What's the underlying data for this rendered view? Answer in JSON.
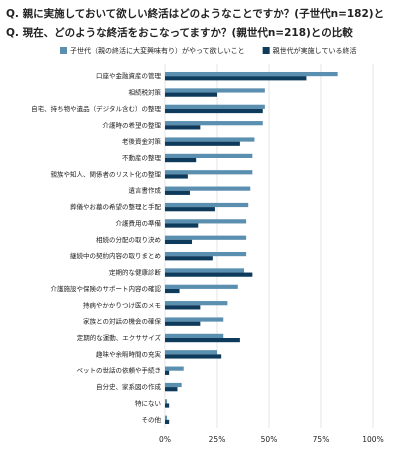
{
  "chart_data": {
    "type": "hbar",
    "title": [
      "Q. 親に実施しておいて欲しい終活はどのようなことですか？(子世代n=182)と",
      "Q. 現在、どのような終活をおこなってますか？(親世代n=218)との比較"
    ],
    "categories": [
      "口座や金融資産の管理",
      "相続税対策",
      "自宅、持ち物や遺品（デジタル含む）の整理",
      "介護時の希望の整理",
      "老後資金対策",
      "不動産の整理",
      "親族や知人、関係者のリスト化の整理",
      "遺言書作成",
      "葬儀やお墓の希望の整理と手配",
      "介護費用の準備",
      "相続の分配の取り決め",
      "継続中の契約内容の取りまとめ",
      "定期的な健康診断",
      "介護施設や保険のサポート内容の確認",
      "持病やかかりつけ医のメモ",
      "家族との対話の機会の確保",
      "定期的な運動、エクササイズ",
      "趣味や余暇時間の充実",
      "ペットの世話の依頼や手続き",
      "自分史、家系図の作成",
      "特にない",
      "その他"
    ],
    "category_colors": [
      "#222",
      "#222",
      "#222",
      "#d9761e",
      "#222",
      "#222",
      "#d9761e",
      "#d9761e",
      "#222",
      "#222",
      "#222",
      "#222",
      "#222",
      "#222",
      "#222",
      "#222",
      "#222",
      "#222",
      "#222",
      "#222",
      "#222",
      "#222"
    ],
    "series": [
      {
        "name": "子世代（親の終活に大変興味有り）がやって欲しいこと",
        "color": "#5a8fb0",
        "values": [
          83,
          48,
          48,
          47,
          43,
          42,
          42,
          41,
          40,
          39,
          39,
          39,
          38,
          35,
          30,
          28,
          28,
          25,
          9,
          8,
          1,
          1
        ]
      },
      {
        "name": "親世代が実施している終活",
        "color": "#0e3a5c",
        "values": [
          68,
          25,
          47,
          17,
          36,
          15,
          11,
          12,
          24,
          16,
          13,
          23,
          42,
          7,
          17,
          17,
          36,
          27,
          2,
          6,
          2,
          2
        ]
      }
    ],
    "xlim": [
      0,
      100
    ],
    "xticks": [
      {
        "value": 0,
        "label": "0%"
      },
      {
        "value": 25,
        "label": "25%"
      },
      {
        "value": 50,
        "label": "50%"
      },
      {
        "value": 75,
        "label": "75%"
      },
      {
        "value": 100,
        "label": "100%"
      }
    ],
    "grid": true
  }
}
